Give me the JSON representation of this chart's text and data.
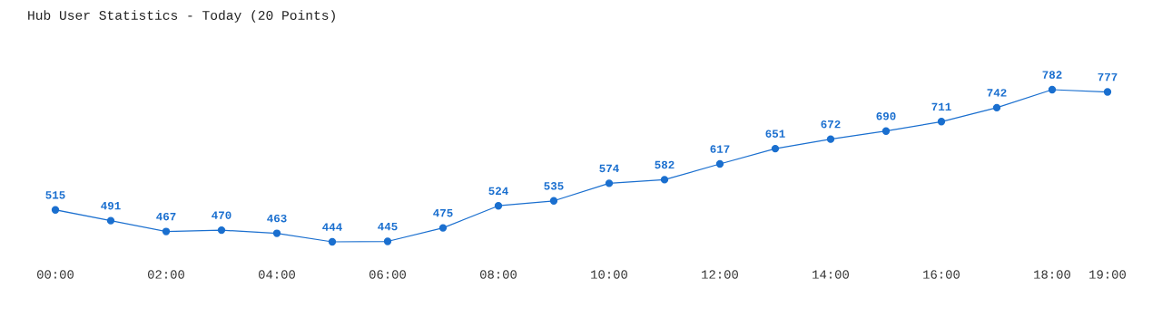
{
  "chart_data": {
    "type": "line",
    "title": "Hub User Statistics - Today (20 Points)",
    "x": [
      0,
      1,
      2,
      3,
      4,
      5,
      6,
      7,
      8,
      9,
      10,
      11,
      12,
      13,
      14,
      15,
      16,
      17,
      18,
      19
    ],
    "series": [
      {
        "color": "#1a6fcf",
        "values": [
          515,
          491,
          467,
          470,
          463,
          444,
          445,
          475,
          524,
          535,
          574,
          582,
          617,
          651,
          672,
          690,
          711,
          742,
          782,
          777
        ]
      }
    ],
    "xticks": [
      {
        "value": 0,
        "label": "00:00"
      },
      {
        "value": 2,
        "label": "02:00"
      },
      {
        "value": 4,
        "label": "04:00"
      },
      {
        "value": 6,
        "label": "06:00"
      },
      {
        "value": 8,
        "label": "08:00"
      },
      {
        "value": 10,
        "label": "10:00"
      },
      {
        "value": 12,
        "label": "12:00"
      },
      {
        "value": 14,
        "label": "14:00"
      },
      {
        "value": 16,
        "label": "16:00"
      },
      {
        "value": 18,
        "label": "18:00"
      },
      {
        "value": 19,
        "label": "19:00"
      }
    ],
    "xlim": [
      0,
      19
    ],
    "tick_labels": "x",
    "data_labels": true,
    "grid": false,
    "legend": false,
    "marker": "circle",
    "line_style": "solid"
  }
}
